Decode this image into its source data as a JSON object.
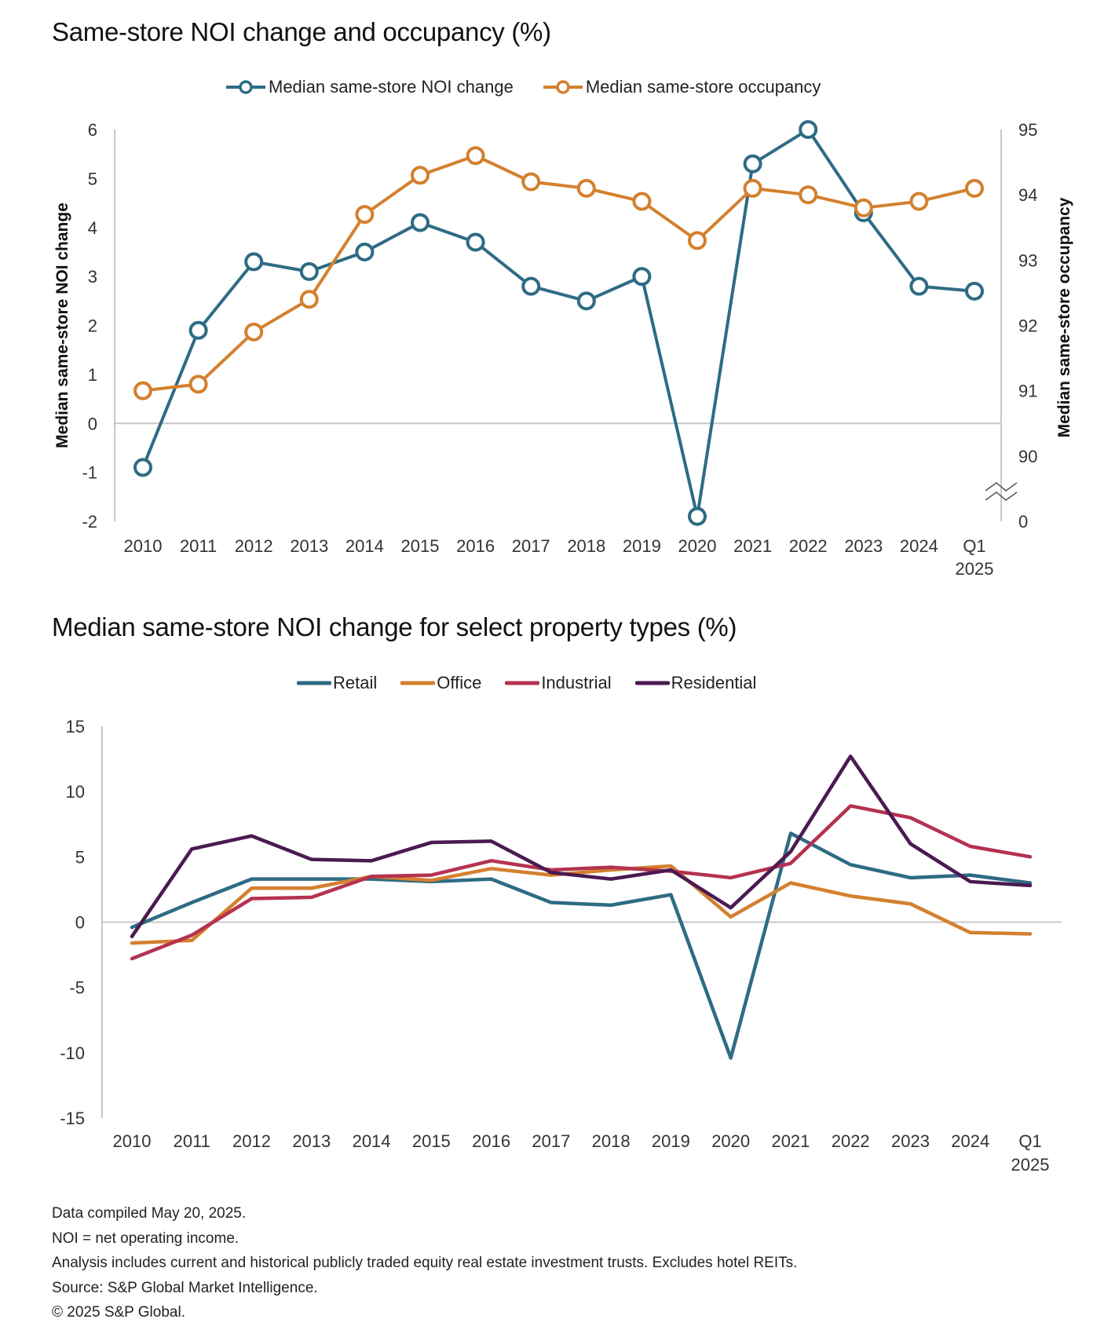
{
  "colors": {
    "noi": "#2e6b84",
    "occupancy": "#d4802e",
    "retail": "#2e6b84",
    "office": "#d4802e",
    "industrial": "#b5324f",
    "residential": "#4b1a52",
    "axis": "#c8c8c8"
  },
  "chart_data": [
    {
      "type": "line",
      "title": "Same-store NOI change and occupancy (%)",
      "categories": [
        "2010",
        "2011",
        "2012",
        "2013",
        "2014",
        "2015",
        "2016",
        "2017",
        "2018",
        "2019",
        "2020",
        "2021",
        "2022",
        "2023",
        "2024",
        "Q1 2025"
      ],
      "category_labels": [
        [
          "2010"
        ],
        [
          "2011"
        ],
        [
          "2012"
        ],
        [
          "2013"
        ],
        [
          "2014"
        ],
        [
          "2015"
        ],
        [
          "2016"
        ],
        [
          "2017"
        ],
        [
          "2018"
        ],
        [
          "2019"
        ],
        [
          "2020"
        ],
        [
          "2021"
        ],
        [
          "2022"
        ],
        [
          "2023"
        ],
        [
          "2024"
        ],
        [
          "Q1",
          "2025"
        ]
      ],
      "series": [
        {
          "name": "Median same-store NOI change",
          "axis": "left",
          "color_key": "noi",
          "markers": true,
          "values": [
            -0.9,
            1.9,
            3.3,
            3.1,
            3.5,
            4.1,
            3.7,
            2.8,
            2.5,
            3.0,
            -1.9,
            5.3,
            6.0,
            4.3,
            2.8,
            2.7
          ]
        },
        {
          "name": "Median same-store occupancy",
          "axis": "right",
          "color_key": "occupancy",
          "markers": true,
          "values": [
            91.0,
            91.1,
            91.9,
            92.4,
            93.7,
            94.3,
            94.6,
            94.2,
            94.1,
            93.9,
            93.3,
            94.1,
            94.0,
            93.8,
            93.9,
            94.1
          ]
        }
      ],
      "ylabel": "Median same-store NOI change",
      "ylim": [
        -2,
        6
      ],
      "yticks": [
        "6",
        "5",
        "4",
        "3",
        "2",
        "1",
        "0",
        "-1",
        "-2"
      ],
      "y2label": "Median same-store occupancy",
      "y2lim": [
        90,
        95
      ],
      "y2ticks": [
        "95",
        "94",
        "93",
        "92",
        "91",
        "90",
        "0"
      ],
      "y2_axis_break": true,
      "legend": "top-center",
      "grid": false
    },
    {
      "type": "line",
      "title": "Median same-store NOI change for select property types (%)",
      "categories": [
        "2010",
        "2011",
        "2012",
        "2013",
        "2014",
        "2015",
        "2016",
        "2017",
        "2018",
        "2019",
        "2020",
        "2021",
        "2022",
        "2023",
        "2024",
        "Q1 2025"
      ],
      "category_labels": [
        [
          "2010"
        ],
        [
          "2011"
        ],
        [
          "2012"
        ],
        [
          "2013"
        ],
        [
          "2014"
        ],
        [
          "2015"
        ],
        [
          "2016"
        ],
        [
          "2017"
        ],
        [
          "2018"
        ],
        [
          "2019"
        ],
        [
          "2020"
        ],
        [
          "2021"
        ],
        [
          "2022"
        ],
        [
          "2023"
        ],
        [
          "2024"
        ],
        [
          "Q1",
          "2025"
        ]
      ],
      "series": [
        {
          "name": "Retail",
          "color_key": "retail",
          "values": [
            -0.4,
            1.5,
            3.3,
            3.3,
            3.3,
            3.1,
            3.3,
            1.5,
            1.3,
            2.1,
            -10.4,
            6.8,
            4.4,
            3.4,
            3.6,
            3.0
          ]
        },
        {
          "name": "Office",
          "color_key": "office",
          "values": [
            -1.6,
            -1.4,
            2.6,
            2.6,
            3.5,
            3.2,
            4.1,
            3.6,
            4.0,
            4.3,
            0.4,
            3.0,
            2.0,
            1.4,
            -0.8,
            -0.9
          ]
        },
        {
          "name": "Industrial",
          "color_key": "industrial",
          "values": [
            -2.8,
            -1.0,
            1.8,
            1.9,
            3.5,
            3.6,
            4.7,
            4.0,
            4.2,
            3.9,
            3.4,
            4.5,
            8.9,
            8.0,
            5.8,
            5.0
          ]
        },
        {
          "name": "Residential",
          "color_key": "residential",
          "values": [
            -1.1,
            5.6,
            6.6,
            4.8,
            4.7,
            6.1,
            6.2,
            3.8,
            3.3,
            4.0,
            1.1,
            5.4,
            12.7,
            6.0,
            3.1,
            2.8
          ]
        }
      ],
      "ylim": [
        -15,
        15
      ],
      "yticks": [
        "15",
        "10",
        "5",
        "0",
        "-5",
        "-10",
        "-15"
      ],
      "legend": "top-center",
      "grid": false
    }
  ],
  "footnotes": [
    "Data compiled May 20, 2025.",
    "NOI = net operating income.",
    "Analysis includes current and historical publicly traded equity real estate investment trusts. Excludes hotel REITs.",
    "Source: S&P Global Market Intelligence.",
    "© 2025 S&P Global."
  ]
}
